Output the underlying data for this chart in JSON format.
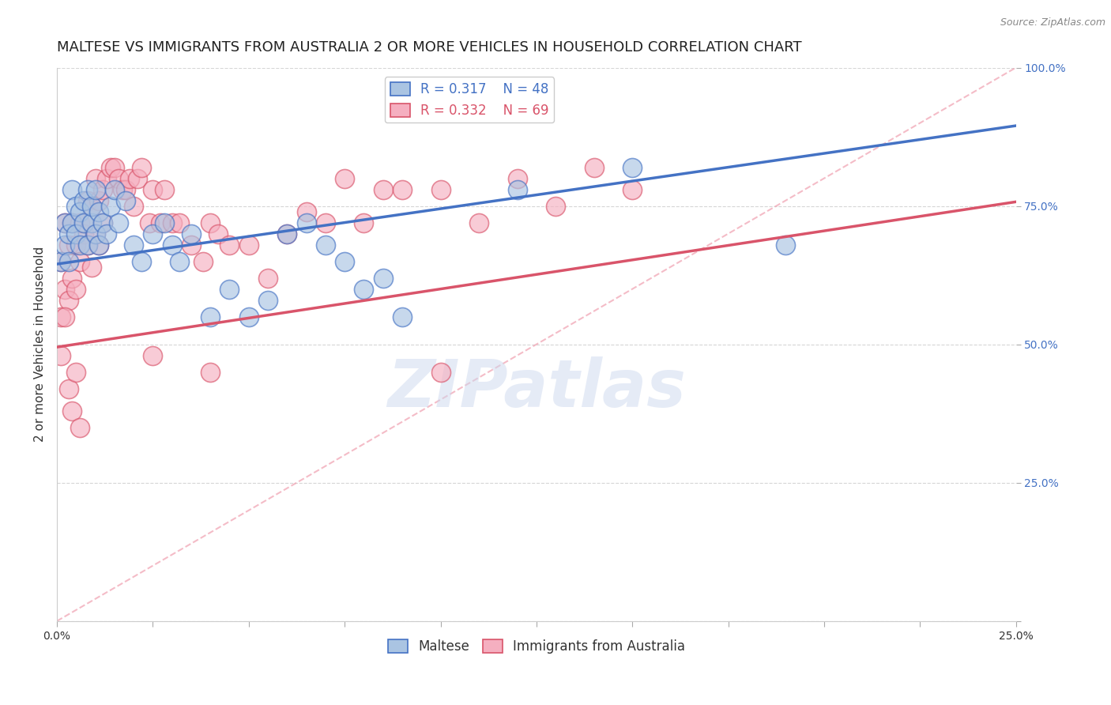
{
  "title": "MALTESE VS IMMIGRANTS FROM AUSTRALIA 2 OR MORE VEHICLES IN HOUSEHOLD CORRELATION CHART",
  "source_text": "Source: ZipAtlas.com",
  "xlabel": "",
  "ylabel": "2 or more Vehicles in Household",
  "xlim": [
    0.0,
    0.25
  ],
  "ylim": [
    0.0,
    1.0
  ],
  "xticks": [
    0.0,
    0.025,
    0.05,
    0.075,
    0.1,
    0.125,
    0.15,
    0.175,
    0.2,
    0.225,
    0.25
  ],
  "xticklabels": [
    "0.0%",
    "",
    "",
    "",
    "",
    "",
    "",
    "",
    "",
    "",
    "25.0%"
  ],
  "yticks": [
    0.0,
    0.25,
    0.5,
    0.75,
    1.0
  ],
  "yticklabels": [
    "",
    "25.0%",
    "50.0%",
    "75.0%",
    "100.0%"
  ],
  "blue_R": 0.317,
  "blue_N": 48,
  "pink_R": 0.332,
  "pink_N": 69,
  "blue_color": "#aac4e2",
  "pink_color": "#f5afc0",
  "blue_line_color": "#4472c4",
  "pink_line_color": "#d9546a",
  "diag_color": "#f0a0b0",
  "watermark_color": "#ccd8ee",
  "blue_scatter_x": [
    0.001,
    0.002,
    0.002,
    0.003,
    0.003,
    0.004,
    0.004,
    0.005,
    0.005,
    0.006,
    0.006,
    0.007,
    0.007,
    0.008,
    0.008,
    0.009,
    0.009,
    0.01,
    0.01,
    0.011,
    0.011,
    0.012,
    0.013,
    0.014,
    0.015,
    0.016,
    0.018,
    0.02,
    0.022,
    0.025,
    0.028,
    0.03,
    0.032,
    0.035,
    0.04,
    0.045,
    0.05,
    0.055,
    0.06,
    0.065,
    0.07,
    0.075,
    0.08,
    0.085,
    0.09,
    0.12,
    0.15,
    0.19
  ],
  "blue_scatter_y": [
    0.65,
    0.68,
    0.72,
    0.7,
    0.65,
    0.72,
    0.78,
    0.7,
    0.75,
    0.74,
    0.68,
    0.76,
    0.72,
    0.78,
    0.68,
    0.72,
    0.75,
    0.78,
    0.7,
    0.74,
    0.68,
    0.72,
    0.7,
    0.75,
    0.78,
    0.72,
    0.76,
    0.68,
    0.65,
    0.7,
    0.72,
    0.68,
    0.65,
    0.7,
    0.55,
    0.6,
    0.55,
    0.58,
    0.7,
    0.72,
    0.68,
    0.65,
    0.6,
    0.62,
    0.55,
    0.78,
    0.82,
    0.68
  ],
  "pink_scatter_x": [
    0.001,
    0.001,
    0.002,
    0.002,
    0.003,
    0.003,
    0.004,
    0.004,
    0.005,
    0.005,
    0.006,
    0.006,
    0.007,
    0.007,
    0.008,
    0.008,
    0.009,
    0.009,
    0.01,
    0.01,
    0.011,
    0.011,
    0.012,
    0.012,
    0.013,
    0.014,
    0.015,
    0.016,
    0.017,
    0.018,
    0.019,
    0.02,
    0.021,
    0.022,
    0.024,
    0.025,
    0.027,
    0.028,
    0.03,
    0.032,
    0.035,
    0.038,
    0.04,
    0.042,
    0.045,
    0.05,
    0.055,
    0.06,
    0.065,
    0.07,
    0.075,
    0.08,
    0.085,
    0.09,
    0.1,
    0.11,
    0.12,
    0.13,
    0.14,
    0.15,
    0.001,
    0.002,
    0.003,
    0.004,
    0.005,
    0.006,
    0.025,
    0.04,
    0.1
  ],
  "pink_scatter_y": [
    0.65,
    0.55,
    0.72,
    0.6,
    0.68,
    0.58,
    0.72,
    0.62,
    0.68,
    0.6,
    0.72,
    0.65,
    0.7,
    0.72,
    0.68,
    0.76,
    0.64,
    0.75,
    0.8,
    0.7,
    0.76,
    0.68,
    0.78,
    0.72,
    0.8,
    0.82,
    0.82,
    0.8,
    0.78,
    0.78,
    0.8,
    0.75,
    0.8,
    0.82,
    0.72,
    0.78,
    0.72,
    0.78,
    0.72,
    0.72,
    0.68,
    0.65,
    0.72,
    0.7,
    0.68,
    0.68,
    0.62,
    0.7,
    0.74,
    0.72,
    0.8,
    0.72,
    0.78,
    0.78,
    0.78,
    0.72,
    0.8,
    0.75,
    0.82,
    0.78,
    0.48,
    0.55,
    0.42,
    0.38,
    0.45,
    0.35,
    0.48,
    0.45,
    0.45
  ],
  "blue_line_intercept": 0.645,
  "blue_line_slope": 1.0,
  "pink_line_intercept": 0.495,
  "pink_line_slope": 1.05,
  "watermark": "ZIPatlas",
  "background_color": "#ffffff",
  "grid_color": "#cccccc",
  "title_fontsize": 13,
  "axis_label_fontsize": 11,
  "tick_fontsize": 10,
  "legend_fontsize": 12
}
